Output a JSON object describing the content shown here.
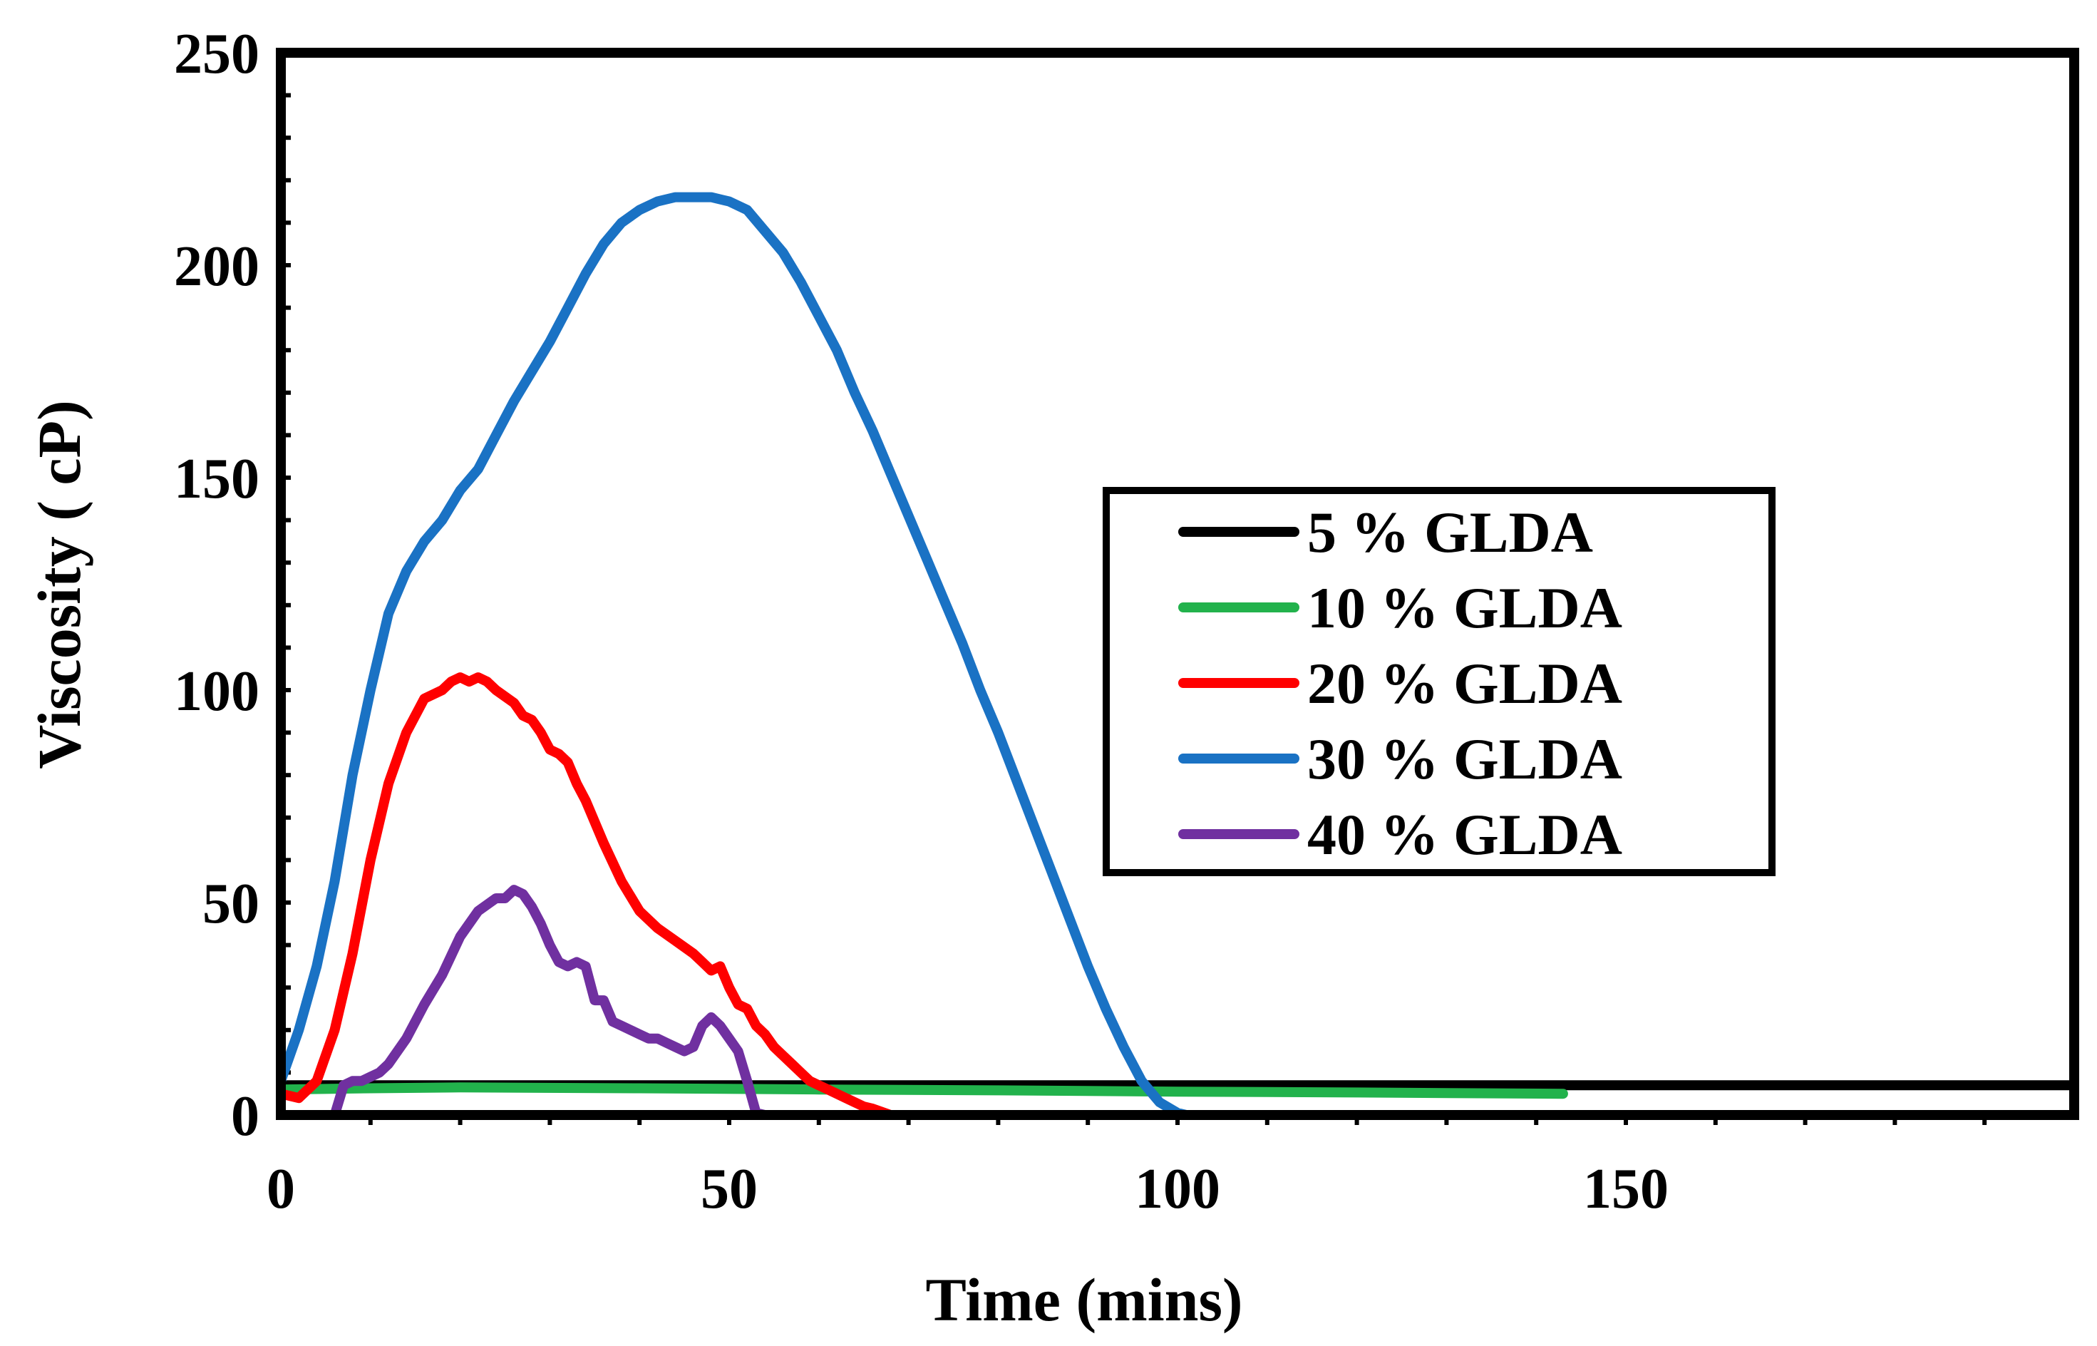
{
  "chart_data": {
    "type": "line",
    "title": "",
    "xlabel": "Time (mins)",
    "ylabel": "Viscosity ( cP)",
    "xlim": [
      0,
      200
    ],
    "ylim": [
      0,
      250
    ],
    "x_ticks": [
      "0",
      "50",
      "100",
      "150"
    ],
    "y_ticks": [
      "0",
      "50",
      "100",
      "150",
      "200",
      "250"
    ],
    "x_tick_values": [
      0,
      50,
      100,
      150
    ],
    "y_tick_values": [
      0,
      50,
      100,
      150,
      200,
      250
    ],
    "legend_position": "center-right",
    "grid": false,
    "series": [
      {
        "name": "5 % GLDA",
        "color": "#000000",
        "x": [
          0,
          50,
          100,
          150,
          200
        ],
        "y": [
          7,
          7,
          7,
          7,
          7
        ]
      },
      {
        "name": "10 % GLDA",
        "color": "#22b24c",
        "x": [
          0,
          10,
          20,
          40,
          60,
          80,
          100,
          120,
          143
        ],
        "y": [
          6,
          6.3,
          6.5,
          6.3,
          6,
          5.8,
          5.5,
          5.3,
          5
        ]
      },
      {
        "name": "20 % GLDA",
        "color": "#ff0000",
        "x": [
          0,
          2,
          4,
          6,
          8,
          10,
          12,
          14,
          16,
          18,
          19,
          20,
          21,
          22,
          23,
          24,
          26,
          27,
          28,
          29,
          30,
          31,
          32,
          33,
          34,
          36,
          38,
          40,
          42,
          44,
          46,
          47,
          48,
          49,
          50,
          51,
          52,
          53,
          54,
          55,
          56,
          57,
          58,
          59,
          60,
          61,
          62,
          63,
          64,
          65,
          66,
          68
        ],
        "y": [
          5,
          4,
          8,
          20,
          38,
          60,
          78,
          90,
          98,
          100,
          102,
          103,
          102,
          103,
          102,
          100,
          97,
          94,
          93,
          90,
          86,
          85,
          83,
          78,
          74,
          64,
          55,
          48,
          44,
          41,
          38,
          36,
          34,
          35,
          30,
          26,
          25,
          21,
          19,
          16,
          14,
          12,
          10,
          8,
          7,
          6,
          5,
          4,
          3,
          2,
          1.5,
          0
        ]
      },
      {
        "name": "30 % GLDA",
        "color": "#1a72c4",
        "x": [
          0,
          2,
          4,
          6,
          8,
          10,
          12,
          14,
          16,
          18,
          20,
          22,
          24,
          26,
          28,
          30,
          32,
          34,
          36,
          38,
          40,
          42,
          44,
          46,
          48,
          50,
          52,
          54,
          56,
          58,
          60,
          62,
          64,
          66,
          68,
          70,
          72,
          74,
          76,
          78,
          80,
          82,
          84,
          86,
          88,
          90,
          92,
          94,
          96,
          98,
          100,
          101,
          102
        ],
        "y": [
          8,
          20,
          35,
          55,
          80,
          100,
          118,
          128,
          135,
          140,
          147,
          152,
          160,
          168,
          175,
          182,
          190,
          198,
          205,
          210,
          213,
          215,
          216,
          216,
          216,
          215,
          213,
          208,
          203,
          196,
          188,
          180,
          170,
          161,
          151,
          141,
          131,
          121,
          111,
          100,
          90,
          79,
          68,
          57,
          46,
          35,
          25,
          16,
          8,
          3,
          0.5,
          0,
          0
        ]
      },
      {
        "name": "40 % GLDA",
        "color": "#7030a0",
        "x": [
          0,
          6,
          7,
          8,
          9,
          10,
          11,
          12,
          14,
          16,
          18,
          20,
          22,
          24,
          25,
          26,
          27,
          28,
          29,
          30,
          31,
          32,
          33,
          34,
          35,
          36,
          37,
          38,
          39,
          40,
          41,
          42,
          43,
          44,
          45,
          46,
          47,
          48,
          49,
          50,
          51,
          52,
          53,
          54,
          55,
          60,
          100,
          150,
          200
        ],
        "y": [
          0,
          0,
          7,
          8,
          8,
          9,
          10,
          12,
          18,
          26,
          33,
          42,
          48,
          51,
          51,
          53,
          52,
          49,
          45,
          40,
          36,
          35,
          36,
          35,
          27,
          27,
          22,
          21,
          20,
          19,
          18,
          18,
          17,
          16,
          15,
          16,
          21,
          23,
          21,
          18,
          15,
          8,
          0.5,
          0,
          0,
          0,
          0,
          0,
          0
        ]
      }
    ]
  }
}
